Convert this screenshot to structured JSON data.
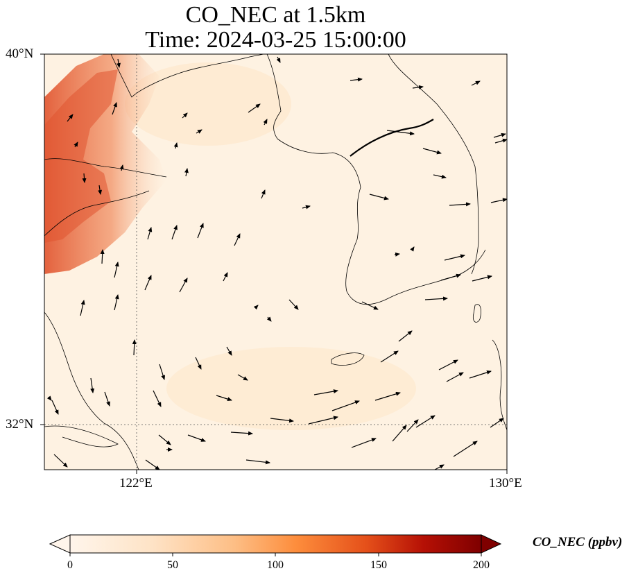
{
  "title": {
    "line1": "CO_NEC at 1.5km",
    "line2": "Time: 2024-03-25 15:00:00"
  },
  "axes": {
    "lat_ticks": [
      "40°N",
      "32°N"
    ],
    "lon_ticks": [
      "122°E",
      "130°E"
    ]
  },
  "colorbar": {
    "label": "CO_NEC (ppbv)",
    "ticks": [
      "0",
      "50",
      "100",
      "150",
      "200"
    ],
    "range": [
      0,
      200
    ],
    "extend": "both",
    "colormap": [
      "#fff5eb",
      "#fdd8b2",
      "#fdab67",
      "#f2701f",
      "#d5410a",
      "#980000",
      "#7f0000"
    ]
  },
  "map": {
    "extent_lon": [
      120,
      130
    ],
    "extent_lat": [
      31,
      40
    ],
    "gridlines": "dotted",
    "overlay": "wind vectors",
    "background_color": "#fef1e0",
    "plume_color": "#e8643c"
  }
}
